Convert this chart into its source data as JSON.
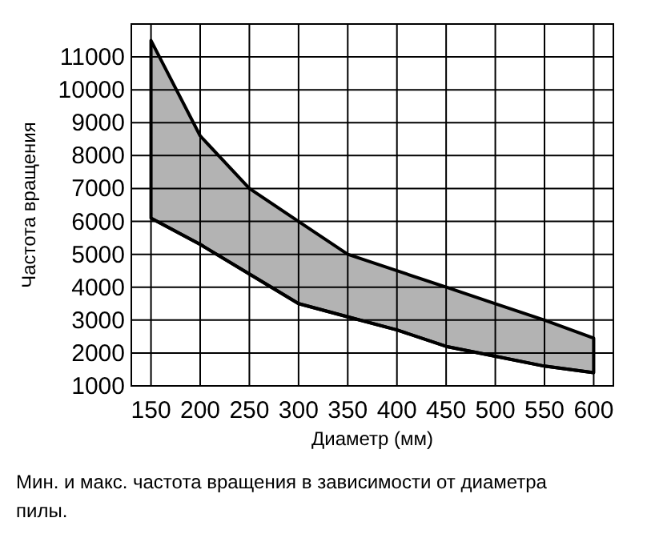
{
  "chart_data": {
    "type": "area",
    "xlabel": "Диаметр (мм)",
    "ylabel": "Частота вращения",
    "annotations": [
      "Мин. и макс. частота вращения в зависимости от диаметра пилы."
    ],
    "x": [
      150,
      200,
      250,
      300,
      350,
      400,
      450,
      500,
      550,
      600
    ],
    "series": [
      {
        "type": "line",
        "color": "#000000",
        "values": [
          6100,
          5300,
          4400,
          3500,
          3100,
          2700,
          2200,
          1900,
          1600,
          1400
        ]
      },
      {
        "color": "#b3b3b3",
        "values": [
          11500,
          8600,
          7000,
          6000,
          5000,
          4500,
          4000,
          3500,
          3000,
          2450
        ]
      }
    ],
    "xlim": [
      130,
      620
    ],
    "ylim": [
      1000,
      12000
    ],
    "xticks": [
      150,
      200,
      250,
      300,
      350,
      400,
      450,
      500,
      550,
      600
    ],
    "yticks": [
      1000,
      2000,
      3000,
      4000,
      5000,
      6000,
      7000,
      8000,
      9000,
      10000,
      11000
    ],
    "grid": true
  }
}
